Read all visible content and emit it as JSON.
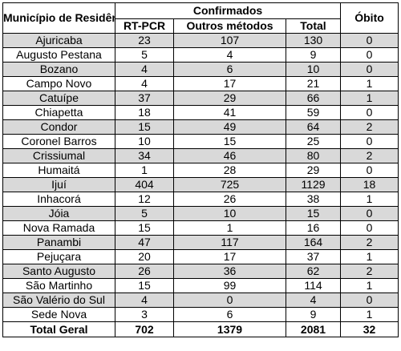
{
  "headers": {
    "municipio": "Município de Residência",
    "confirmados": "Confirmados",
    "rt_pcr": "RT-PCR",
    "outros": "Outros métodos",
    "total": "Total",
    "obito": "Óbito"
  },
  "rows": [
    {
      "municipio": "Ajuricaba",
      "rt_pcr": "23",
      "outros": "107",
      "total": "130",
      "obito": "0"
    },
    {
      "municipio": "Augusto Pestana",
      "rt_pcr": "5",
      "outros": "4",
      "total": "9",
      "obito": "0"
    },
    {
      "municipio": "Bozano",
      "rt_pcr": "4",
      "outros": "6",
      "total": "10",
      "obito": "0"
    },
    {
      "municipio": "Campo Novo",
      "rt_pcr": "4",
      "outros": "17",
      "total": "21",
      "obito": "1"
    },
    {
      "municipio": "Catuípe",
      "rt_pcr": "37",
      "outros": "29",
      "total": "66",
      "obito": "1"
    },
    {
      "municipio": "Chiapetta",
      "rt_pcr": "18",
      "outros": "41",
      "total": "59",
      "obito": "0"
    },
    {
      "municipio": "Condor",
      "rt_pcr": "15",
      "outros": "49",
      "total": "64",
      "obito": "2"
    },
    {
      "municipio": "Coronel Barros",
      "rt_pcr": "10",
      "outros": "15",
      "total": "25",
      "obito": "0"
    },
    {
      "municipio": "Crissiumal",
      "rt_pcr": "34",
      "outros": "46",
      "total": "80",
      "obito": "2"
    },
    {
      "municipio": "Humaitá",
      "rt_pcr": "1",
      "outros": "28",
      "total": "29",
      "obito": "0"
    },
    {
      "municipio": "Ijuí",
      "rt_pcr": "404",
      "outros": "725",
      "total": "1129",
      "obito": "18"
    },
    {
      "municipio": "Inhacorá",
      "rt_pcr": "12",
      "outros": "26",
      "total": "38",
      "obito": "1"
    },
    {
      "municipio": "Jóia",
      "rt_pcr": "5",
      "outros": "10",
      "total": "15",
      "obito": "0"
    },
    {
      "municipio": "Nova Ramada",
      "rt_pcr": "15",
      "outros": "1",
      "total": "16",
      "obito": "0"
    },
    {
      "municipio": "Panambi",
      "rt_pcr": "47",
      "outros": "117",
      "total": "164",
      "obito": "2"
    },
    {
      "municipio": "Pejuçara",
      "rt_pcr": "20",
      "outros": "17",
      "total": "37",
      "obito": "1"
    },
    {
      "municipio": "Santo Augusto",
      "rt_pcr": "26",
      "outros": "36",
      "total": "62",
      "obito": "2"
    },
    {
      "municipio": "São Martinho",
      "rt_pcr": "15",
      "outros": "99",
      "total": "114",
      "obito": "1"
    },
    {
      "municipio": "São Valério do Sul",
      "rt_pcr": "4",
      "outros": "0",
      "total": "4",
      "obito": "0"
    },
    {
      "municipio": "Sede Nova",
      "rt_pcr": "3",
      "outros": "6",
      "total": "9",
      "obito": "1"
    }
  ],
  "totals": {
    "label": "Total Geral",
    "rt_pcr": "702",
    "outros": "1379",
    "total": "2081",
    "obito": "32"
  },
  "colors": {
    "shaded_row": "#d9d9d9",
    "border": "#000000"
  }
}
